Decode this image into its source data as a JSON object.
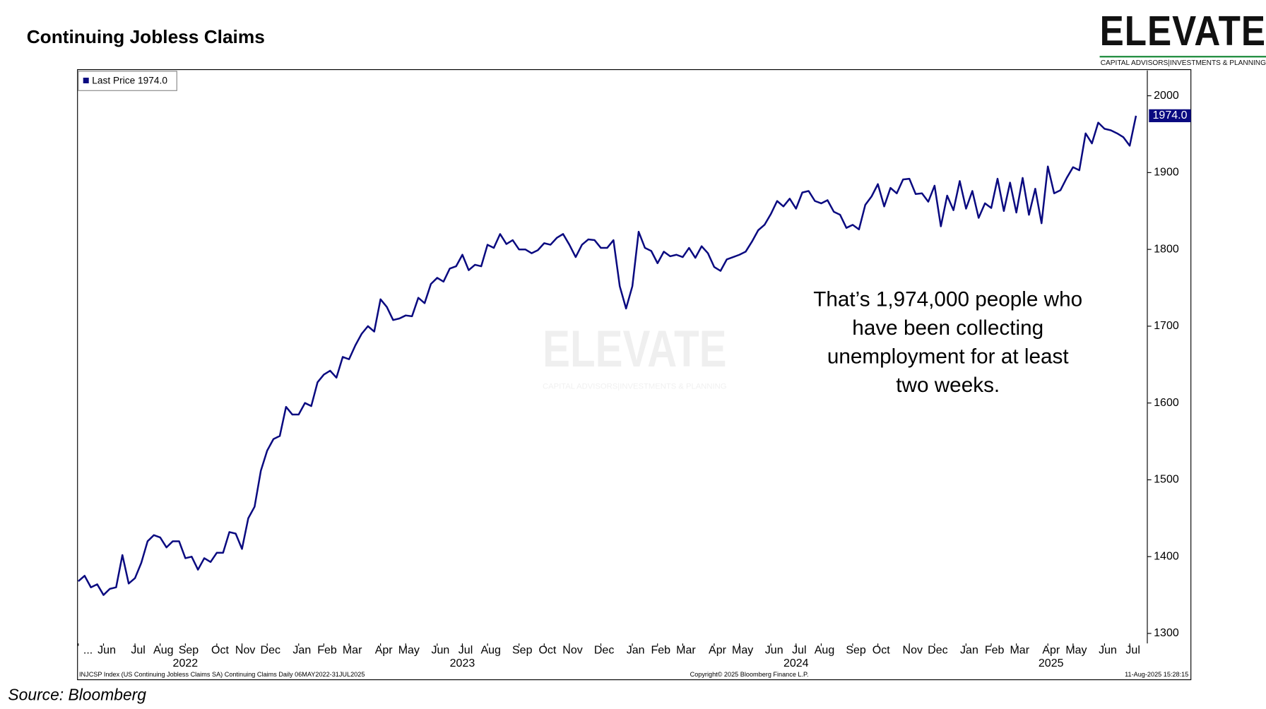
{
  "chart_data": {
    "type": "line",
    "title": "Continuing Jobless Claims",
    "series": [
      {
        "name": "Last Price",
        "color": "#0a0a80",
        "last_label": "1974.0",
        "values": [
          1368,
          1375,
          1360,
          1364,
          1350,
          1358,
          1360,
          1402,
          1365,
          1372,
          1392,
          1420,
          1428,
          1425,
          1412,
          1420,
          1420,
          1398,
          1400,
          1383,
          1398,
          1393,
          1405,
          1405,
          1432,
          1430,
          1410,
          1450,
          1465,
          1512,
          1538,
          1553,
          1557,
          1595,
          1585,
          1585,
          1600,
          1596,
          1627,
          1637,
          1642,
          1633,
          1660,
          1657,
          1675,
          1690,
          1700,
          1693,
          1735,
          1725,
          1708,
          1710,
          1714,
          1713,
          1737,
          1730,
          1755,
          1763,
          1758,
          1775,
          1778,
          1793,
          1773,
          1780,
          1778,
          1806,
          1802,
          1820,
          1807,
          1812,
          1800,
          1800,
          1795,
          1799,
          1808,
          1806,
          1815,
          1820,
          1806,
          1790,
          1806,
          1813,
          1812,
          1802,
          1802,
          1812,
          1752,
          1723,
          1752,
          1823,
          1802,
          1798,
          1782,
          1797,
          1791,
          1793,
          1790,
          1802,
          1789,
          1804,
          1795,
          1777,
          1772,
          1787,
          1790,
          1793,
          1797,
          1810,
          1825,
          1832,
          1846,
          1863,
          1856,
          1866,
          1853,
          1874,
          1876,
          1863,
          1860,
          1864,
          1849,
          1845,
          1828,
          1832,
          1826,
          1858,
          1869,
          1885,
          1856,
          1880,
          1873,
          1891,
          1892,
          1872,
          1873,
          1862,
          1883,
          1830,
          1870,
          1851,
          1889,
          1853,
          1876,
          1841,
          1860,
          1854,
          1892,
          1850,
          1887,
          1848,
          1893,
          1845,
          1879,
          1834,
          1908,
          1873,
          1877,
          1893,
          1907,
          1903,
          1951,
          1938,
          1965,
          1957,
          1955,
          1951,
          1946,
          1935,
          1974
        ]
      }
    ],
    "x": [
      "2022-05",
      "2022-05",
      "2022-05",
      "2022-05",
      "2022-06",
      "2022-06",
      "2022-06",
      "2022-06",
      "2022-06",
      "2022-07",
      "2022-07",
      "2022-07",
      "2022-07",
      "2022-08",
      "2022-08",
      "2022-08",
      "2022-08",
      "2022-09",
      "2022-09",
      "2022-09",
      "2022-09",
      "2022-09",
      "2022-10",
      "2022-10",
      "2022-10",
      "2022-10",
      "2022-11",
      "2022-11",
      "2022-11",
      "2022-11",
      "2022-12",
      "2022-12",
      "2022-12",
      "2022-12",
      "2022-12",
      "2023-01",
      "2023-01",
      "2023-01",
      "2023-01",
      "2023-02",
      "2023-02",
      "2023-02",
      "2023-02",
      "2023-03",
      "2023-03",
      "2023-03",
      "2023-03",
      "2023-03",
      "2023-04",
      "2023-04",
      "2023-04",
      "2023-04",
      "2023-05",
      "2023-05",
      "2023-05",
      "2023-05",
      "2023-05",
      "2023-06",
      "2023-06",
      "2023-06",
      "2023-06",
      "2023-07",
      "2023-07",
      "2023-07",
      "2023-07",
      "2023-08",
      "2023-08",
      "2023-08",
      "2023-08",
      "2023-08",
      "2023-09",
      "2023-09",
      "2023-09",
      "2023-09",
      "2023-10",
      "2023-10",
      "2023-10",
      "2023-10",
      "2023-11",
      "2023-11",
      "2023-11",
      "2023-11",
      "2023-11",
      "2023-12",
      "2023-12",
      "2023-12",
      "2023-12",
      "2023-12",
      "2024-01",
      "2024-01",
      "2024-01",
      "2024-01",
      "2024-02",
      "2024-02",
      "2024-02",
      "2024-02",
      "2024-03",
      "2024-03",
      "2024-03",
      "2024-03",
      "2024-03",
      "2024-04",
      "2024-04",
      "2024-04",
      "2024-04",
      "2024-05",
      "2024-05",
      "2024-05",
      "2024-05",
      "2024-05",
      "2024-06",
      "2024-06",
      "2024-06",
      "2024-06",
      "2024-07",
      "2024-07",
      "2024-07",
      "2024-07",
      "2024-08",
      "2024-08",
      "2024-08",
      "2024-08",
      "2024-08",
      "2024-09",
      "2024-09",
      "2024-09",
      "2024-09",
      "2024-10",
      "2024-10",
      "2024-10",
      "2024-10",
      "2024-10",
      "2024-11",
      "2024-11",
      "2024-11",
      "2024-11",
      "2024-12",
      "2024-12",
      "2024-12",
      "2024-12",
      "2024-12",
      "2025-01",
      "2025-01",
      "2025-01",
      "2025-01",
      "2025-02",
      "2025-02",
      "2025-02",
      "2025-02",
      "2025-03",
      "2025-03",
      "2025-03",
      "2025-03",
      "2025-03",
      "2025-04",
      "2025-04",
      "2025-04",
      "2025-04",
      "2025-05",
      "2025-05",
      "2025-05",
      "2025-05",
      "2025-05",
      "2025-06",
      "2025-06",
      "2025-06",
      "2025-06",
      "2025-07",
      "2025-07"
    ],
    "month_labels": [
      "...",
      "Jun",
      "Jul",
      "Aug",
      "Sep",
      "Oct",
      "Nov",
      "Dec",
      "Jan",
      "Feb",
      "Mar",
      "Apr",
      "May",
      "Jun",
      "Jul",
      "Aug",
      "Sep",
      "Oct",
      "Nov",
      "Dec",
      "Jan",
      "Feb",
      "Mar",
      "Apr",
      "May",
      "Jun",
      "Jul",
      "Aug",
      "Sep",
      "Oct",
      "Nov",
      "Dec",
      "Jan",
      "Feb",
      "Mar",
      "Apr",
      "May",
      "Jun",
      "Jul"
    ],
    "year_labels": [
      "2022",
      "2023",
      "2024",
      "2025"
    ],
    "ylim": [
      1287,
      2033
    ],
    "yticks": [
      1300,
      1400,
      1500,
      1600,
      1700,
      1800,
      1900,
      2000
    ],
    "annotation": [
      "That’s 1,974,000 people who",
      "have been collecting",
      "unemployment for at least",
      "two weeks."
    ],
    "footer_left": "INJCSP Index (US Continuing Jobless Claims SA) Continuing Claims  Daily 06MAY2022-31JUL2025",
    "footer_center": "Copyright© 2025 Bloomberg Finance L.P.",
    "footer_right": "11-Aug-2025 15:28:15"
  },
  "logo": {
    "name": "ELEVATE",
    "tagline": "CAPITAL ADVISORS|INVESTMENTS & PLANNING"
  },
  "source": "Source: Bloomberg"
}
